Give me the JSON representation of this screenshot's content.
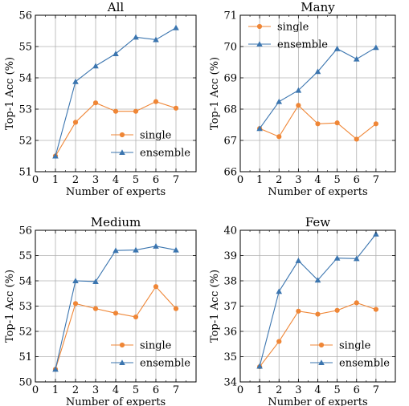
{
  "colors": {
    "single": "#ef8636",
    "ensemble": "#3b75af",
    "grid": "#b0b0b0"
  },
  "chart_data": [
    {
      "type": "line",
      "title": "All",
      "xlabel": "Number of experts",
      "ylabel": "Top-1 Acc (%)",
      "xlim": [
        0,
        8
      ],
      "ylim": [
        51,
        56
      ],
      "xticks": [
        0,
        1,
        2,
        3,
        4,
        5,
        6,
        7
      ],
      "yticks": [
        51,
        52,
        53,
        54,
        55,
        56
      ],
      "grid": true,
      "legend": "bottom-right",
      "x": [
        1,
        2,
        3,
        4,
        5,
        6,
        7
      ],
      "series": [
        {
          "name": "single",
          "marker": "circle",
          "values": [
            51.5,
            52.58,
            53.2,
            52.93,
            52.93,
            53.24,
            53.03
          ]
        },
        {
          "name": "ensemble",
          "marker": "triangle",
          "values": [
            51.5,
            53.88,
            54.38,
            54.77,
            55.3,
            55.22,
            55.6
          ]
        }
      ]
    },
    {
      "type": "line",
      "title": "Many",
      "xlabel": "Number of experts",
      "ylabel": "Top-1 Acc (%)",
      "xlim": [
        0,
        8
      ],
      "ylim": [
        66,
        71
      ],
      "xticks": [
        0,
        1,
        2,
        3,
        4,
        5,
        6,
        7
      ],
      "yticks": [
        66,
        67,
        68,
        69,
        70,
        71
      ],
      "grid": true,
      "legend": "top-left",
      "x": [
        1,
        2,
        3,
        4,
        5,
        6,
        7
      ],
      "series": [
        {
          "name": "single",
          "marker": "circle",
          "values": [
            67.38,
            67.12,
            68.12,
            67.53,
            67.56,
            67.04,
            67.53
          ]
        },
        {
          "name": "ensemble",
          "marker": "triangle",
          "values": [
            67.38,
            68.24,
            68.6,
            69.2,
            69.93,
            69.6,
            69.97
          ]
        }
      ]
    },
    {
      "type": "line",
      "title": "Medium",
      "xlabel": "Number of experts",
      "ylabel": "Top-1 Acc (%)",
      "xlim": [
        0,
        8
      ],
      "ylim": [
        50,
        56
      ],
      "xticks": [
        0,
        1,
        2,
        3,
        4,
        5,
        6,
        7
      ],
      "yticks": [
        50,
        51,
        52,
        53,
        54,
        55,
        56
      ],
      "grid": true,
      "legend": "bottom-right",
      "x": [
        1,
        2,
        3,
        4,
        5,
        6,
        7
      ],
      "series": [
        {
          "name": "single",
          "marker": "circle",
          "values": [
            50.5,
            53.1,
            52.9,
            52.72,
            52.57,
            53.77,
            52.9
          ]
        },
        {
          "name": "ensemble",
          "marker": "triangle",
          "values": [
            50.5,
            54.0,
            53.97,
            55.2,
            55.22,
            55.37,
            55.22
          ]
        }
      ]
    },
    {
      "type": "line",
      "title": "Few",
      "xlabel": "Number of experts",
      "ylabel": "Top-1 Acc (%)",
      "xlim": [
        0,
        8
      ],
      "ylim": [
        34,
        40
      ],
      "xticks": [
        0,
        1,
        2,
        3,
        4,
        5,
        6,
        7
      ],
      "yticks": [
        34,
        35,
        36,
        37,
        38,
        39,
        40
      ],
      "grid": true,
      "legend": "bottom-right",
      "x": [
        1,
        2,
        3,
        4,
        5,
        6,
        7
      ],
      "series": [
        {
          "name": "single",
          "marker": "circle",
          "values": [
            34.6,
            35.6,
            36.8,
            36.68,
            36.83,
            37.13,
            36.87
          ]
        },
        {
          "name": "ensemble",
          "marker": "triangle",
          "values": [
            34.62,
            37.58,
            38.8,
            38.03,
            38.9,
            38.88,
            39.85
          ]
        }
      ]
    }
  ]
}
